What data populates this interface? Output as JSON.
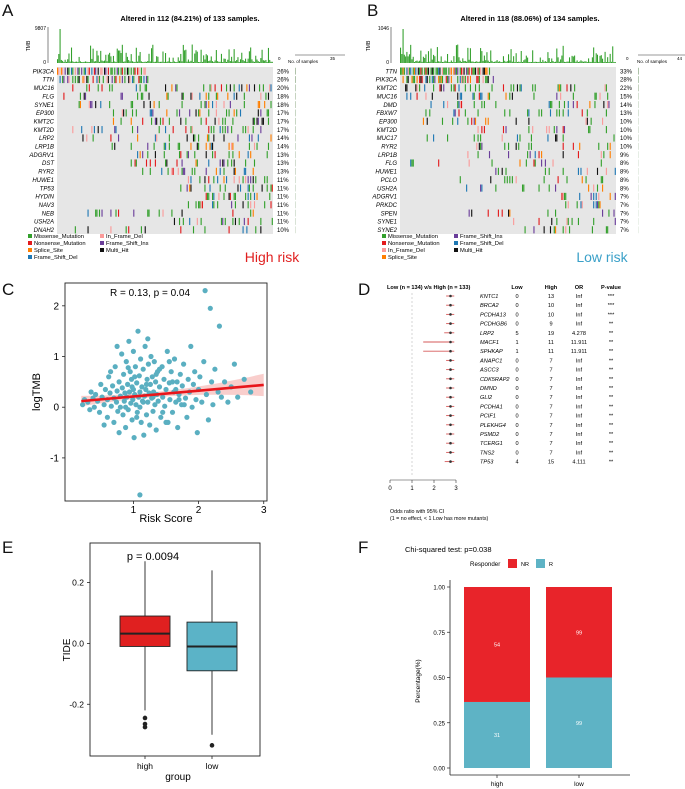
{
  "panel_labels": {
    "a": "A",
    "b": "B",
    "c": "C",
    "d": "D",
    "e": "E",
    "f": "F"
  },
  "panel_a": {
    "title": "Altered in 112 (84.21%) of 133 samples.",
    "tmb_label": "TMB",
    "tmb_max": "9807",
    "tmb_zero": "0",
    "bar_header": "No. of samples",
    "bar_axis_min": "0",
    "bar_axis_max": "35",
    "risk_label": "High risk",
    "genes": [
      "PIK3CA",
      "TTN",
      "MUC16",
      "FLG",
      "SYNE1",
      "EP300",
      "KMT2C",
      "KMT2D",
      "LRP2",
      "LRP1B",
      "ADGRV1",
      "DST",
      "RYR2",
      "HUWE1",
      "TP53",
      "HYDIN",
      "NAV3",
      "NEB",
      "USH2A",
      "DNAH2"
    ],
    "percents": [
      "26%",
      "26%",
      "20%",
      "18%",
      "18%",
      "17%",
      "17%",
      "17%",
      "14%",
      "14%",
      "13%",
      "13%",
      "13%",
      "11%",
      "11%",
      "11%",
      "11%",
      "11%",
      "11%",
      "10%"
    ],
    "legend": [
      "Missense_Mutation",
      "Nonsense_Mutation",
      "Splice_Site",
      "Frame_Shift_Del",
      "In_Frame_Del",
      "Frame_Shift_Ins",
      "Multi_Hit"
    ]
  },
  "panel_b": {
    "title": "Altered in 118 (88.06%) of 134 samples.",
    "tmb_label": "TMB",
    "tmb_max": "1046",
    "tmb_zero": "0",
    "bar_header": "No. of samples",
    "bar_axis_min": "0",
    "bar_axis_max": "44",
    "risk_label": "Low risk",
    "genes": [
      "TTN",
      "PIK3CA",
      "KMT2C",
      "MUC16",
      "DMD",
      "FBXW7",
      "EP300",
      "KMT2D",
      "MUC17",
      "RYR2",
      "LRP1B",
      "FLG",
      "HUWE1",
      "PCLO",
      "USH2A",
      "ADGRV1",
      "PRKDC",
      "SPEN",
      "SYNE1",
      "SYNE2"
    ],
    "percents": [
      "33%",
      "28%",
      "22%",
      "15%",
      "14%",
      "13%",
      "10%",
      "10%",
      "10%",
      "10%",
      "9%",
      "8%",
      "8%",
      "8%",
      "8%",
      "7%",
      "7%",
      "7%",
      "7%",
      "7%"
    ],
    "legend": [
      "Missense_Mutation",
      "Nonsense_Mutation",
      "In_Frame_Del",
      "Splice_Site",
      "Frame_Shift_Ins",
      "Frame_Shift_Del",
      "Multi_Hit"
    ]
  },
  "panel_d": {
    "header": "Low (n = 134) v/s High (n = 133)",
    "col_low": "Low",
    "col_high": "High",
    "col_or": "OR",
    "col_p": "P-value",
    "rows": [
      {
        "gene": "KNTC1",
        "low": "0",
        "high": "13",
        "or": "Inf",
        "p": "***"
      },
      {
        "gene": "BRCA2",
        "low": "0",
        "high": "10",
        "or": "Inf",
        "p": "***"
      },
      {
        "gene": "PCDHA13",
        "low": "0",
        "high": "10",
        "or": "Inf",
        "p": "***"
      },
      {
        "gene": "PCDHGB6",
        "low": "0",
        "high": "9",
        "or": "Inf",
        "p": "**"
      },
      {
        "gene": "LRP2",
        "low": "5",
        "high": "19",
        "or": "4.278",
        "p": "**"
      },
      {
        "gene": "MACF1",
        "low": "1",
        "high": "11",
        "or": "11.911",
        "p": "**"
      },
      {
        "gene": "SPHKAP",
        "low": "1",
        "high": "11",
        "or": "11.911",
        "p": "**"
      },
      {
        "gene": "ANAPC1",
        "low": "0",
        "high": "7",
        "or": "Inf",
        "p": "**"
      },
      {
        "gene": "ASCC3",
        "low": "0",
        "high": "7",
        "or": "Inf",
        "p": "**"
      },
      {
        "gene": "CDK5RAP2",
        "low": "0",
        "high": "7",
        "or": "Inf",
        "p": "**"
      },
      {
        "gene": "DMND",
        "low": "0",
        "high": "7",
        "or": "Inf",
        "p": "**"
      },
      {
        "gene": "GLI2",
        "low": "0",
        "high": "7",
        "or": "Inf",
        "p": "**"
      },
      {
        "gene": "PCDHA1",
        "low": "0",
        "high": "7",
        "or": "Inf",
        "p": "**"
      },
      {
        "gene": "PCIF1",
        "low": "0",
        "high": "7",
        "or": "Inf",
        "p": "**"
      },
      {
        "gene": "PLEKHG4",
        "low": "0",
        "high": "7",
        "or": "Inf",
        "p": "**"
      },
      {
        "gene": "PSMD2",
        "low": "0",
        "high": "7",
        "or": "Inf",
        "p": "**"
      },
      {
        "gene": "TCERG1",
        "low": "0",
        "high": "7",
        "or": "Inf",
        "p": "**"
      },
      {
        "gene": "TNS2",
        "low": "0",
        "high": "7",
        "or": "Inf",
        "p": "**"
      },
      {
        "gene": "TP53",
        "low": "4",
        "high": "15",
        "or": "4.111",
        "p": "**"
      }
    ],
    "axis_ticks": [
      "0",
      "1",
      "2",
      "3"
    ],
    "footnote1": "Odds ratio with 95% CI",
    "footnote2": "(1 = no effect, < 1 Low has more mutants)"
  },
  "colors": {
    "missense": "#33a02c",
    "nonsense": "#e31a1c",
    "splice": "#ff7f00",
    "fsdel": "#1f78b4",
    "ifdel": "#fb9a99",
    "fsins": "#6a3d9a",
    "multi": "#111111",
    "high": "#e02020",
    "low": "#5bb3c7",
    "nr": "#e8242a",
    "r": "#5eb3c5",
    "scatter": "#5aafc1",
    "fit": "#e8161b"
  },
  "chart_data": [
    {
      "id": "scatter_c",
      "type": "scatter",
      "annotation": "R = 0.13, p = 0.04",
      "xlabel": "Risk Score",
      "ylabel": "logTMB",
      "xlim": [
        -0.05,
        3.05
      ],
      "ylim": [
        -1.85,
        2.45
      ],
      "xticks": [
        "1",
        "2",
        "3"
      ],
      "yticks": [
        "-1",
        "0",
        "1",
        "2"
      ],
      "fit": {
        "x0": 0.2,
        "y0": 0.12,
        "x1": 3.0,
        "y1": 0.44
      },
      "points": [
        [
          0.22,
          0.05
        ],
        [
          0.25,
          0.15
        ],
        [
          0.3,
          0.1
        ],
        [
          0.33,
          -0.05
        ],
        [
          0.35,
          0.3
        ],
        [
          0.38,
          0.18
        ],
        [
          0.4,
          0.0
        ],
        [
          0.42,
          0.25
        ],
        [
          0.45,
          0.12
        ],
        [
          0.48,
          -0.1
        ],
        [
          0.5,
          0.45
        ],
        [
          0.52,
          0.2
        ],
        [
          0.55,
          0.05
        ],
        [
          0.57,
          0.35
        ],
        [
          0.6,
          -0.2
        ],
        [
          0.6,
          0.15
        ],
        [
          0.62,
          0.6
        ],
        [
          0.64,
          0.28
        ],
        [
          0.66,
          0.02
        ],
        [
          0.68,
          0.42
        ],
        [
          0.7,
          0.18
        ],
        [
          0.7,
          -0.3
        ],
        [
          0.72,
          0.8
        ],
        [
          0.74,
          0.1
        ],
        [
          0.75,
          0.32
        ],
        [
          0.76,
          -0.08
        ],
        [
          0.78,
          0.5
        ],
        [
          0.8,
          0.22
        ],
        [
          0.8,
          0.0
        ],
        [
          0.82,
          1.05
        ],
        [
          0.83,
          0.38
        ],
        [
          0.84,
          -0.15
        ],
        [
          0.85,
          0.65
        ],
        [
          0.86,
          0.12
        ],
        [
          0.87,
          0.28
        ],
        [
          0.88,
          -0.4
        ],
        [
          0.89,
          0.9
        ],
        [
          0.9,
          0.2
        ],
        [
          0.91,
          0.45
        ],
        [
          0.92,
          -0.05
        ],
        [
          0.93,
          1.3
        ],
        [
          0.94,
          0.3
        ],
        [
          0.95,
          0.7
        ],
        [
          0.96,
          0.08
        ],
        [
          0.97,
          0.55
        ],
        [
          0.98,
          -0.25
        ],
        [
          0.99,
          0.15
        ],
        [
          1.0,
          0.35
        ],
        [
          1.0,
          1.1
        ],
        [
          1.01,
          -0.6
        ],
        [
          1.02,
          0.25
        ],
        [
          1.03,
          0.8
        ],
        [
          1.04,
          0.05
        ],
        [
          1.05,
          0.48
        ],
        [
          1.06,
          -0.1
        ],
        [
          1.07,
          1.5
        ],
        [
          1.08,
          0.2
        ],
        [
          1.09,
          0.62
        ],
        [
          1.1,
          0.0
        ],
        [
          1.1,
          0.3
        ],
        [
          1.11,
          0.95
        ],
        [
          1.12,
          -0.3
        ],
        [
          1.13,
          0.4
        ],
        [
          1.14,
          0.12
        ],
        [
          1.15,
          0.75
        ],
        [
          1.16,
          -0.55
        ],
        [
          1.17,
          0.22
        ],
        [
          1.18,
          1.2
        ],
        [
          1.19,
          0.35
        ],
        [
          1.2,
          -0.15
        ],
        [
          1.21,
          0.55
        ],
        [
          1.22,
          0.1
        ],
        [
          1.23,
          0.85
        ],
        [
          1.24,
          0.28
        ],
        [
          1.25,
          -0.35
        ],
        [
          1.26,
          0.45
        ],
        [
          1.27,
          1.0
        ],
        [
          1.28,
          0.18
        ],
        [
          1.29,
          0.6
        ],
        [
          1.3,
          -0.08
        ],
        [
          1.31,
          0.3
        ],
        [
          1.32,
          0.9
        ],
        [
          1.33,
          0.05
        ],
        [
          1.34,
          0.5
        ],
        [
          1.35,
          -0.45
        ],
        [
          1.36,
          0.25
        ],
        [
          1.37,
          0.7
        ],
        [
          1.38,
          0.12
        ],
        [
          1.4,
          0.4
        ],
        [
          1.42,
          -0.2
        ],
        [
          1.44,
          0.8
        ],
        [
          1.45,
          0.2
        ],
        [
          1.47,
          0.55
        ],
        [
          1.48,
          0.02
        ],
        [
          1.5,
          0.35
        ],
        [
          1.52,
          1.1
        ],
        [
          1.53,
          -0.3
        ],
        [
          1.55,
          0.48
        ],
        [
          1.56,
          0.15
        ],
        [
          1.58,
          0.7
        ],
        [
          1.6,
          -0.1
        ],
        [
          1.62,
          0.3
        ],
        [
          1.63,
          0.95
        ],
        [
          1.65,
          0.1
        ],
        [
          1.67,
          0.5
        ],
        [
          1.68,
          -0.4
        ],
        [
          1.7,
          0.25
        ],
        [
          1.72,
          0.65
        ],
        [
          1.74,
          0.05
        ],
        [
          1.75,
          0.42
        ],
        [
          1.77,
          0.85
        ],
        [
          1.8,
          0.18
        ],
        [
          1.82,
          -0.2
        ],
        [
          1.84,
          0.55
        ],
        [
          1.86,
          0.3
        ],
        [
          1.88,
          1.2
        ],
        [
          1.9,
          0.0
        ],
        [
          1.92,
          0.45
        ],
        [
          1.94,
          0.7
        ],
        [
          1.96,
          0.15
        ],
        [
          1.98,
          -0.5
        ],
        [
          2.0,
          0.35
        ],
        [
          2.02,
          0.6
        ],
        [
          2.05,
          0.1
        ],
        [
          2.08,
          0.9
        ],
        [
          2.1,
          2.3
        ],
        [
          2.12,
          0.25
        ],
        [
          2.15,
          -0.25
        ],
        [
          2.18,
          1.95
        ],
        [
          2.2,
          0.5
        ],
        [
          2.22,
          0.05
        ],
        [
          2.25,
          0.75
        ],
        [
          2.3,
          0.3
        ],
        [
          2.32,
          1.6
        ],
        [
          2.35,
          0.2
        ],
        [
          2.4,
          0.5
        ],
        [
          2.45,
          0.1
        ],
        [
          2.5,
          0.4
        ],
        [
          2.55,
          0.85
        ],
        [
          2.6,
          0.2
        ],
        [
          2.7,
          0.55
        ],
        [
          2.8,
          0.3
        ],
        [
          1.1,
          -1.73
        ],
        [
          0.55,
          -0.35
        ],
        [
          0.65,
          0.7
        ],
        [
          0.75,
          1.2
        ],
        [
          0.78,
          -0.5
        ],
        [
          0.88,
          0.0
        ],
        [
          1.02,
          0.6
        ],
        [
          1.15,
          0.1
        ],
        [
          1.22,
          1.35
        ],
        [
          1.35,
          0.65
        ],
        [
          1.45,
          -0.1
        ],
        [
          1.55,
          0.9
        ],
        [
          1.65,
          0.35
        ],
        [
          1.78,
          0.05
        ],
        [
          0.92,
          0.78
        ],
        [
          0.98,
          0.4
        ],
        [
          1.05,
          -0.2
        ],
        [
          1.2,
          0.45
        ],
        [
          1.3,
          0.2
        ],
        [
          1.4,
          0.75
        ],
        [
          1.5,
          -0.3
        ],
        [
          1.6,
          0.5
        ],
        [
          1.7,
          0.15
        ]
      ]
    },
    {
      "id": "box_e",
      "type": "box",
      "title": "p = 0.0094",
      "xlabel": "group",
      "ylabel": "TIDE",
      "ylim": [
        -0.37,
        0.33
      ],
      "yticks": [
        "0.2",
        "0.0",
        "-0.2"
      ],
      "categories": [
        "high",
        "low"
      ],
      "boxes": [
        {
          "name": "high",
          "q1": -0.01,
          "median": 0.032,
          "q3": 0.09,
          "whisker_low": -0.22,
          "whisker_high": 0.27,
          "outliers": [
            -0.245,
            -0.265,
            -0.275
          ]
        },
        {
          "name": "low",
          "q1": -0.09,
          "median": -0.01,
          "q3": 0.07,
          "whisker_low": -0.3,
          "whisker_high": 0.24,
          "outliers": [
            -0.335
          ]
        }
      ]
    },
    {
      "id": "stacked_f",
      "type": "bar",
      "title": "Chi-squared test: p=0.038",
      "legend_title": "Responder",
      "legend": [
        "NR",
        "R"
      ],
      "xlabel": "",
      "ylabel": "Percentage(%)",
      "yticks": [
        "0.00",
        "0.25",
        "0.50",
        "0.75",
        "1.00"
      ],
      "categories": [
        "high",
        "low"
      ],
      "series": [
        {
          "name": "NR",
          "values": [
            0.6352,
            0.5
          ],
          "labels": [
            "54",
            "99"
          ]
        },
        {
          "name": "R",
          "values": [
            0.3648,
            0.5
          ],
          "labels": [
            "31",
            "99"
          ]
        }
      ]
    }
  ]
}
